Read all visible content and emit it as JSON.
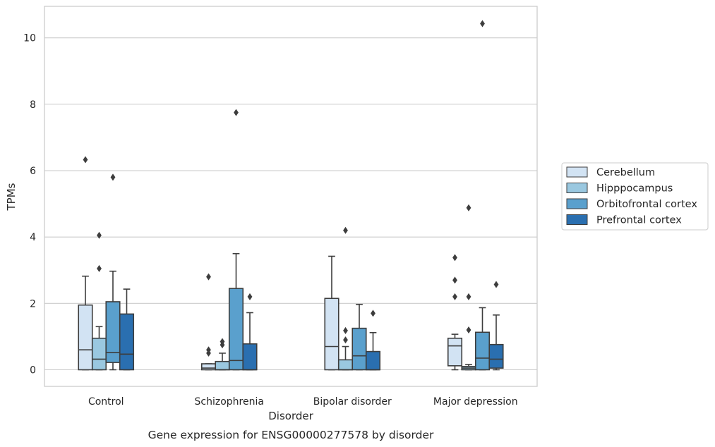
{
  "caption": "Gene expression for ENSG00000277578 by disorder",
  "chart_data": {
    "type": "box",
    "xlabel": "Disorder",
    "ylabel": "TPMs",
    "ylim": [
      -0.5,
      10.95
    ],
    "yticks": [
      0,
      2,
      4,
      6,
      8,
      10
    ],
    "grid": "horizontal",
    "legend_position": "right",
    "categories": [
      "Control",
      "Schizophrenia",
      "Bipolar disorder",
      "Major depression"
    ],
    "series": [
      {
        "name": "Cerebellum",
        "color": "#d2e3f3",
        "boxes": [
          {
            "q1": 0.0,
            "median": 0.6,
            "q3": 1.95,
            "whislo": 0.0,
            "whishi": 2.82,
            "fliers": [
              6.33
            ]
          },
          {
            "q1": 0.0,
            "median": 0.05,
            "q3": 0.18,
            "whislo": 0.0,
            "whishi": 0.18,
            "fliers": [
              0.5,
              0.6,
              2.8
            ]
          },
          {
            "q1": 0.0,
            "median": 0.7,
            "q3": 2.15,
            "whislo": 0.0,
            "whishi": 3.42,
            "fliers": []
          },
          {
            "q1": 0.12,
            "median": 0.72,
            "q3": 0.95,
            "whislo": 0.0,
            "whishi": 1.07,
            "fliers": [
              2.2,
              2.7,
              3.38
            ]
          }
        ]
      },
      {
        "name": "Hipppocampus",
        "color": "#9ac8e0",
        "boxes": [
          {
            "q1": 0.0,
            "median": 0.32,
            "q3": 0.95,
            "whislo": 0.0,
            "whishi": 1.3,
            "fliers": [
              3.05,
              4.05
            ]
          },
          {
            "q1": 0.0,
            "median": 0.0,
            "q3": 0.25,
            "whislo": 0.0,
            "whishi": 0.5,
            "fliers": [
              0.75,
              0.85
            ]
          },
          {
            "q1": 0.0,
            "median": 0.0,
            "q3": 0.3,
            "whislo": 0.0,
            "whishi": 0.7,
            "fliers": [
              0.9,
              1.18,
              4.2
            ]
          },
          {
            "q1": 0.0,
            "median": 0.05,
            "q3": 0.1,
            "whislo": 0.0,
            "whishi": 0.16,
            "fliers": [
              1.2,
              2.2,
              4.88
            ]
          }
        ]
      },
      {
        "name": "Orbitofrontal cortex",
        "color": "#5aa0cd",
        "boxes": [
          {
            "q1": 0.22,
            "median": 0.52,
            "q3": 2.05,
            "whislo": 0.0,
            "whishi": 2.97,
            "fliers": [
              5.8
            ]
          },
          {
            "q1": 0.0,
            "median": 0.28,
            "q3": 2.45,
            "whislo": 0.0,
            "whishi": 3.5,
            "fliers": [
              7.75
            ]
          },
          {
            "q1": 0.0,
            "median": 0.42,
            "q3": 1.25,
            "whislo": 0.0,
            "whishi": 1.97,
            "fliers": []
          },
          {
            "q1": 0.0,
            "median": 0.35,
            "q3": 1.13,
            "whislo": 0.0,
            "whishi": 1.87,
            "fliers": [
              10.43
            ]
          }
        ]
      },
      {
        "name": "Prefrontal cortex",
        "color": "#2a6fb0",
        "boxes": [
          {
            "q1": 0.0,
            "median": 0.47,
            "q3": 1.68,
            "whislo": 0.0,
            "whishi": 2.43,
            "fliers": []
          },
          {
            "q1": 0.0,
            "median": 0.0,
            "q3": 0.78,
            "whislo": 0.0,
            "whishi": 1.72,
            "fliers": [
              2.2
            ]
          },
          {
            "q1": 0.0,
            "median": 0.0,
            "q3": 0.55,
            "whislo": 0.0,
            "whishi": 1.12,
            "fliers": [
              1.7
            ]
          },
          {
            "q1": 0.05,
            "median": 0.32,
            "q3": 0.76,
            "whislo": 0.0,
            "whishi": 1.65,
            "fliers": [
              2.57
            ]
          }
        ]
      }
    ]
  }
}
